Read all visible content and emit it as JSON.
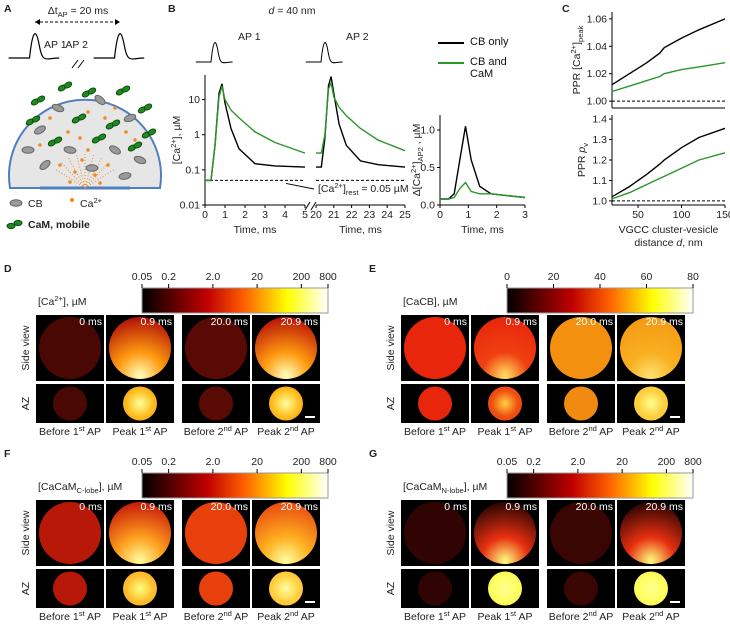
{
  "panel_labels": [
    "A",
    "B",
    "C",
    "D",
    "E",
    "F",
    "G"
  ],
  "panel_a": {
    "interval": [
      {
        "t": "Δt"
      },
      {
        "sub": "AP"
      },
      {
        "t": " = 20 ms"
      }
    ],
    "ap_labels": [
      "AP 1",
      "AP 2"
    ],
    "legend": {
      "cb": "CB",
      "ca": [
        {
          "t": "Ca"
        },
        {
          "sup": "2+"
        }
      ],
      "cam": "CaM, mobile"
    }
  },
  "panel_b": {
    "title": [
      {
        "i": "d"
      },
      {
        "t": " = 40 nm"
      }
    ],
    "ap_labels": [
      "AP 1",
      "AP 2"
    ]
  },
  "chart_data": [
    {
      "type": "line",
      "ylabel": [
        {
          "t": "[Ca"
        },
        {
          "sup": "2+"
        },
        {
          "t": "], µM"
        }
      ],
      "xlabel": "Time, ms",
      "yscale": "log",
      "xlim": [
        0,
        5
      ],
      "xticks": [
        0,
        1,
        2,
        3,
        4,
        5
      ],
      "ylim": [
        0.01,
        50
      ],
      "yticks": [
        0.01,
        0.1,
        1,
        10
      ],
      "reference_line": 0.05,
      "annotation": [
        {
          "t": "[Ca"
        },
        {
          "sup": "2+"
        },
        {
          "t": "]"
        },
        {
          "sub": "rest"
        },
        {
          "t": " = 0.05 µM"
        }
      ],
      "x": [
        0,
        0.3,
        0.5,
        0.7,
        0.85,
        1,
        1.3,
        1.7,
        2.5,
        3.5,
        5
      ],
      "series": [
        {
          "color": "#000000",
          "values": [
            0.05,
            0.05,
            0.5,
            15,
            28,
            8,
            1.5,
            0.4,
            0.15,
            0.13,
            0.12
          ]
        },
        {
          "color": "#2a962a",
          "values": [
            0.05,
            0.05,
            0.5,
            12,
            24,
            10,
            5,
            3,
            1.2,
            0.6,
            0.3
          ]
        }
      ]
    },
    {
      "type": "line",
      "xlabel": "Time, ms",
      "yscale": "log",
      "xlim": [
        20,
        25
      ],
      "xticks": [
        20,
        21,
        22,
        23,
        24,
        25
      ],
      "ylim": [
        0.01,
        50
      ],
      "reference_line": 0.05,
      "x": [
        20,
        20.3,
        20.5,
        20.7,
        20.85,
        21,
        21.3,
        21.7,
        22.5,
        23.5,
        25
      ],
      "series": [
        {
          "color": "#000000",
          "values": [
            0.12,
            0.12,
            0.8,
            25,
            45,
            15,
            2,
            0.5,
            0.18,
            0.14,
            0.12
          ]
        },
        {
          "color": "#2a962a",
          "values": [
            0.3,
            0.3,
            1,
            20,
            30,
            12,
            6,
            3.5,
            1.5,
            0.7,
            0.35
          ]
        }
      ]
    },
    {
      "type": "line",
      "ylabel": [
        {
          "t": "Δ[Ca"
        },
        {
          "sup": "2+"
        },
        {
          "t": "]"
        },
        {
          "sub": "AP2"
        },
        {
          "t": " , µM"
        }
      ],
      "xlabel": "Time, ms",
      "xlim": [
        0,
        3
      ],
      "xticks": [
        0,
        1,
        2,
        3
      ],
      "ylim": [
        0,
        1.2
      ],
      "yticks": [
        {
          "value": 0,
          "label": "0.0"
        },
        {
          "value": 0.5,
          "label": "0.5"
        },
        {
          "value": 1,
          "label": "1.0"
        }
      ],
      "x": [
        0,
        0.3,
        0.5,
        0.7,
        0.9,
        1.1,
        1.4,
        1.8,
        2.5,
        3
      ],
      "series": [
        {
          "name": "CB only",
          "color": "#000000",
          "values": [
            0.08,
            0.08,
            0.15,
            0.6,
            1.05,
            0.6,
            0.25,
            0.15,
            0.12,
            0.1
          ]
        },
        {
          "name": "CB and CaM",
          "color": "#2a962a",
          "values": [
            0.08,
            0.08,
            0.1,
            0.22,
            0.3,
            0.18,
            0.15,
            0.15,
            0.12,
            0.1
          ]
        }
      ]
    },
    {
      "type": "line",
      "ylabel": [
        {
          "t": "PPR [Ca"
        },
        {
          "sup": "2+"
        },
        {
          "t": "]"
        },
        {
          "sub": "peak"
        }
      ],
      "xlim": [
        20,
        150
      ],
      "ylim": [
        0.995,
        1.065
      ],
      "yticks": [
        {
          "value": 1,
          "label": "1.00"
        },
        {
          "value": 1.02,
          "label": "1.02"
        },
        {
          "value": 1.04,
          "label": "1.04"
        },
        {
          "value": 1.06,
          "label": "1.06"
        }
      ],
      "reference_line": 1,
      "x": [
        20,
        40,
        60,
        75,
        80,
        100,
        120,
        150
      ],
      "series": [
        {
          "color": "#000000",
          "values": [
            1.012,
            1.02,
            1.028,
            1.035,
            1.039,
            1.046,
            1.052,
            1.06
          ]
        },
        {
          "color": "#2a962a",
          "values": [
            1.007,
            1.011,
            1.015,
            1.018,
            1.02,
            1.023,
            1.025,
            1.028
          ]
        }
      ]
    },
    {
      "type": "line",
      "ylabel": [
        {
          "t": "PPR "
        },
        {
          "i": "p"
        },
        {
          "sub": "v"
        }
      ],
      "xlabel_lines": [
        "VGCC cluster-vesicle",
        [
          {
            "t": "distance "
          },
          {
            "i": "d"
          },
          {
            "t": ", nm"
          }
        ]
      ],
      "xlim": [
        20,
        150
      ],
      "xticks": [
        50,
        100,
        150
      ],
      "ylim": [
        0.98,
        1.42
      ],
      "yticks": [
        {
          "value": 1,
          "label": "1.0"
        },
        1.1,
        1.2,
        1.3,
        1.4
      ],
      "reference_line": 1,
      "x": [
        20,
        40,
        60,
        75,
        80,
        100,
        120,
        150
      ],
      "series": [
        {
          "color": "#000000",
          "values": [
            1.02,
            1.07,
            1.13,
            1.18,
            1.2,
            1.26,
            1.31,
            1.355
          ]
        },
        {
          "color": "#2a962a",
          "values": [
            1.01,
            1.04,
            1.08,
            1.11,
            1.12,
            1.16,
            1.2,
            1.235
          ]
        }
      ]
    }
  ],
  "heatmaps": {
    "times": [
      "0 ms",
      "0.9 ms",
      "20.0 ms",
      "20.9 ms"
    ],
    "captions": [
      [
        {
          "t": "Before 1"
        },
        {
          "sup": "st"
        },
        {
          "t": " AP"
        }
      ],
      [
        {
          "t": "Peak 1"
        },
        {
          "sup": "st"
        },
        {
          "t": " AP"
        }
      ],
      [
        {
          "t": "Before 2"
        },
        {
          "sup": "nd"
        },
        {
          "t": " AP"
        }
      ],
      [
        {
          "t": "Peak 2"
        },
        {
          "sup": "nd"
        },
        {
          "t": " AP"
        }
      ]
    ],
    "row_labels": [
      "Side view",
      "AZ"
    ],
    "panels": [
      {
        "colorbar_title": [
          {
            "t": "[Ca"
          },
          {
            "sup": "2+"
          },
          {
            "t": "], µM"
          }
        ],
        "colorbar_scale": "log",
        "colorbar_lim": [
          0.05,
          800
        ],
        "colorbar_ticks": [
          0.05,
          0.2,
          {
            "value": 2,
            "label": "2.0"
          },
          20,
          200,
          800
        ]
      },
      {
        "colorbar_title": "[CaCB], µM",
        "colorbar_scale": "linear",
        "colorbar_lim": [
          0,
          80
        ],
        "colorbar_ticks": [
          0,
          20,
          40,
          60,
          80
        ]
      },
      {
        "colorbar_title": [
          {
            "t": "[CaCaM"
          },
          {
            "sub": "C-lobe"
          },
          {
            "t": "], µM"
          }
        ],
        "colorbar_scale": "log",
        "colorbar_lim": [
          0.05,
          800
        ],
        "colorbar_ticks": [
          0.05,
          0.2,
          {
            "value": 2,
            "label": "2.0"
          },
          20,
          200,
          800
        ]
      },
      {
        "colorbar_title": [
          {
            "t": "[CaCaM"
          },
          {
            "sub": "N-lobe"
          },
          {
            "t": "], µM"
          }
        ],
        "colorbar_scale": "log",
        "colorbar_lim": [
          0.05,
          800
        ],
        "colorbar_ticks": [
          0.05,
          0.2,
          {
            "value": 2,
            "label": "2.0"
          },
          20,
          200,
          800
        ]
      }
    ]
  }
}
